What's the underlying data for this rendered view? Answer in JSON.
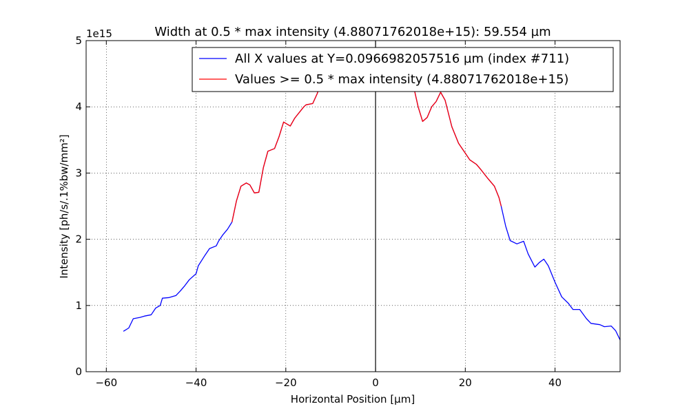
{
  "chart_data": {
    "type": "line",
    "title": "Width at 0.5 * max intensity (4.88071762018e+15): 59.554 µm",
    "xlabel": "Horizontal Position [µm]",
    "ylabel": "Intensity [ph/s/.1%bw/mm²]",
    "y_multiplier_label": "1e15",
    "xlim": [
      -64.5,
      54.5
    ],
    "ylim": [
      0,
      5
    ],
    "x_ticks": [
      -60,
      -40,
      -20,
      0,
      20,
      40
    ],
    "x_tick_labels": [
      "−60",
      "−40",
      "−20",
      "0",
      "20",
      "40"
    ],
    "y_ticks": [
      0,
      1,
      2,
      3,
      4,
      5
    ],
    "y_tick_labels": [
      "0",
      "1",
      "2",
      "3",
      "4",
      "5"
    ],
    "grid": true,
    "vertical_line_x": 0,
    "legend": {
      "placement": "top-right",
      "entries": [
        {
          "label": "All X values at Y=0.0966982057516 µm (index #711)",
          "color": "#0000ff"
        },
        {
          "label": "Values >= 0.5 * max intensity (4.88071762018e+15)",
          "color": "#ff0000"
        }
      ]
    },
    "series": [
      {
        "name": "All X values at Y=0.0966982057516 µm (index #711)",
        "color": "#0000ff",
        "segments": [
          [
            [
              -56.2,
              0.61
            ],
            [
              -55.0,
              0.66
            ],
            [
              -54.0,
              0.8
            ],
            [
              -52.5,
              0.82
            ],
            [
              -51.5,
              0.84
            ],
            [
              -50.0,
              0.86
            ],
            [
              -49.0,
              0.96
            ],
            [
              -48.0,
              1.0
            ],
            [
              -47.5,
              1.11
            ],
            [
              -46.0,
              1.12
            ],
            [
              -44.5,
              1.15
            ],
            [
              -43.5,
              1.22
            ],
            [
              -42.5,
              1.3
            ],
            [
              -41.5,
              1.39
            ],
            [
              -40.0,
              1.48
            ],
            [
              -39.5,
              1.6
            ],
            [
              -38.0,
              1.76
            ],
            [
              -37.0,
              1.86
            ],
            [
              -35.5,
              1.9
            ],
            [
              -35.0,
              1.97
            ],
            [
              -34.0,
              2.07
            ],
            [
              -33.0,
              2.15
            ],
            [
              -32.0,
              2.26
            ]
          ],
          [
            [
              -32.0,
              2.26
            ],
            [
              -31.0,
              2.58
            ],
            [
              -30.0,
              2.8
            ],
            [
              -28.8,
              2.85
            ],
            [
              -28.0,
              2.82
            ],
            [
              -27.0,
              2.7
            ],
            [
              -26.0,
              2.71
            ],
            [
              -25.0,
              3.08
            ],
            [
              -24.0,
              3.33
            ],
            [
              -22.5,
              3.37
            ],
            [
              -21.5,
              3.55
            ],
            [
              -20.5,
              3.77
            ],
            [
              -19.0,
              3.71
            ],
            [
              -18.0,
              3.83
            ],
            [
              -16.0,
              4.0
            ],
            [
              -15.5,
              4.03
            ],
            [
              -14.0,
              4.05
            ],
            [
              -13.0,
              4.2
            ],
            [
              -12.5,
              4.3
            ]
          ],
          [
            [
              8.5,
              4.3
            ],
            [
              9.5,
              4.0
            ],
            [
              10.5,
              3.78
            ],
            [
              11.5,
              3.84
            ],
            [
              12.5,
              4.0
            ],
            [
              13.5,
              4.08
            ],
            [
              14.5,
              4.22
            ],
            [
              15.5,
              4.1
            ],
            [
              17.0,
              3.7
            ],
            [
              18.5,
              3.45
            ],
            [
              20.0,
              3.3
            ],
            [
              21.0,
              3.2
            ],
            [
              22.5,
              3.13
            ],
            [
              23.5,
              3.05
            ],
            [
              25.0,
              2.92
            ],
            [
              26.5,
              2.8
            ],
            [
              27.5,
              2.63
            ],
            [
              28.0,
              2.5
            ]
          ],
          [
            [
              28.0,
              2.5
            ],
            [
              29.0,
              2.2
            ],
            [
              30.0,
              1.98
            ],
            [
              31.5,
              1.93
            ],
            [
              33.0,
              1.97
            ],
            [
              34.0,
              1.78
            ],
            [
              35.5,
              1.58
            ],
            [
              36.5,
              1.65
            ],
            [
              37.5,
              1.7
            ],
            [
              38.5,
              1.6
            ],
            [
              40.0,
              1.35
            ],
            [
              41.5,
              1.13
            ],
            [
              43.0,
              1.03
            ],
            [
              44.0,
              0.94
            ],
            [
              45.5,
              0.94
            ],
            [
              47.0,
              0.8
            ],
            [
              48.0,
              0.73
            ],
            [
              50.0,
              0.71
            ],
            [
              51.0,
              0.68
            ],
            [
              52.5,
              0.69
            ],
            [
              53.5,
              0.62
            ],
            [
              54.5,
              0.48
            ]
          ]
        ]
      },
      {
        "name": "Values >= 0.5 * max intensity (4.88071762018e+15)",
        "color": "#ff0000",
        "segments": [
          [
            [
              -32.0,
              2.26
            ],
            [
              -31.0,
              2.58
            ],
            [
              -30.0,
              2.8
            ],
            [
              -28.8,
              2.85
            ],
            [
              -28.0,
              2.82
            ],
            [
              -27.0,
              2.7
            ],
            [
              -26.0,
              2.71
            ],
            [
              -25.0,
              3.08
            ],
            [
              -24.0,
              3.33
            ],
            [
              -22.5,
              3.37
            ],
            [
              -21.5,
              3.55
            ],
            [
              -20.5,
              3.77
            ],
            [
              -19.0,
              3.71
            ],
            [
              -18.0,
              3.83
            ],
            [
              -16.0,
              4.0
            ],
            [
              -15.5,
              4.03
            ],
            [
              -14.0,
              4.05
            ],
            [
              -13.0,
              4.2
            ],
            [
              -12.5,
              4.3
            ]
          ],
          [
            [
              8.5,
              4.3
            ],
            [
              9.5,
              4.0
            ],
            [
              10.5,
              3.78
            ],
            [
              11.5,
              3.84
            ],
            [
              12.5,
              4.0
            ],
            [
              13.5,
              4.08
            ],
            [
              14.5,
              4.22
            ],
            [
              15.5,
              4.1
            ],
            [
              17.0,
              3.7
            ],
            [
              18.5,
              3.45
            ],
            [
              20.0,
              3.3
            ],
            [
              21.0,
              3.2
            ],
            [
              22.5,
              3.13
            ],
            [
              23.5,
              3.05
            ],
            [
              25.0,
              2.92
            ],
            [
              26.5,
              2.8
            ],
            [
              27.5,
              2.63
            ],
            [
              28.0,
              2.5
            ]
          ]
        ]
      }
    ]
  }
}
